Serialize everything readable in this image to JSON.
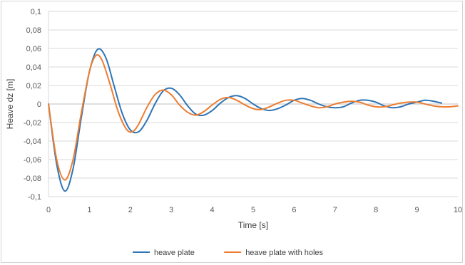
{
  "chart_data": {
    "type": "line",
    "title": "",
    "xlabel": "Time [s]",
    "ylabel": "Heave dz [m]",
    "xlim": [
      0,
      10
    ],
    "ylim": [
      -0.1,
      0.1
    ],
    "x_ticks": [
      "0",
      "1",
      "2",
      "3",
      "4",
      "5",
      "6",
      "7",
      "8",
      "9",
      "10"
    ],
    "y_ticks": [
      "0,1",
      "0,08",
      "0,06",
      "0,04",
      "0,02",
      "0",
      "-0,02",
      "-0,04",
      "-0,06",
      "-0,08",
      "-0,1"
    ],
    "grid": true,
    "legend_position": "bottom",
    "series": [
      {
        "name": "heave plate",
        "color": "#2e75b6",
        "points": [
          [
            0,
            0
          ],
          [
            0.2,
            -0.065
          ],
          [
            0.4,
            -0.094
          ],
          [
            0.6,
            -0.07
          ],
          [
            0.8,
            -0.015
          ],
          [
            1.0,
            0.035
          ],
          [
            1.2,
            0.059
          ],
          [
            1.4,
            0.05
          ],
          [
            1.6,
            0.02
          ],
          [
            1.8,
            -0.01
          ],
          [
            2.0,
            -0.028
          ],
          [
            2.2,
            -0.03
          ],
          [
            2.4,
            -0.018
          ],
          [
            2.6,
            0.0
          ],
          [
            2.8,
            0.014
          ],
          [
            3.0,
            0.017
          ],
          [
            3.2,
            0.01
          ],
          [
            3.4,
            -0.002
          ],
          [
            3.6,
            -0.011
          ],
          [
            3.8,
            -0.012
          ],
          [
            4.0,
            -0.007
          ],
          [
            4.2,
            0.001
          ],
          [
            4.4,
            0.007
          ],
          [
            4.6,
            0.009
          ],
          [
            4.8,
            0.006
          ],
          [
            5.0,
            0.0
          ],
          [
            5.2,
            -0.005
          ],
          [
            5.4,
            -0.007
          ],
          [
            5.6,
            -0.005
          ],
          [
            5.8,
            -0.001
          ],
          [
            6.0,
            0.004
          ],
          [
            6.2,
            0.006
          ],
          [
            6.4,
            0.004
          ],
          [
            6.6,
            0.0
          ],
          [
            6.8,
            -0.003
          ],
          [
            7.0,
            -0.004
          ],
          [
            7.2,
            -0.003
          ],
          [
            7.4,
            0.001
          ],
          [
            7.6,
            0.004
          ],
          [
            7.8,
            0.004
          ],
          [
            8.0,
            0.002
          ],
          [
            8.2,
            -0.002
          ],
          [
            8.4,
            -0.004
          ],
          [
            8.6,
            -0.003
          ],
          [
            8.8,
            0.0
          ],
          [
            9.0,
            0.002
          ],
          [
            9.2,
            0.004
          ],
          [
            9.4,
            0.003
          ],
          [
            9.6,
            0.001
          ]
        ]
      },
      {
        "name": "heave plate with holes",
        "color": "#ed7d31",
        "points": [
          [
            0,
            0
          ],
          [
            0.2,
            -0.06
          ],
          [
            0.4,
            -0.082
          ],
          [
            0.6,
            -0.06
          ],
          [
            0.8,
            -0.01
          ],
          [
            1.0,
            0.035
          ],
          [
            1.15,
            0.052
          ],
          [
            1.3,
            0.048
          ],
          [
            1.5,
            0.022
          ],
          [
            1.7,
            -0.008
          ],
          [
            1.9,
            -0.027
          ],
          [
            2.05,
            -0.03
          ],
          [
            2.2,
            -0.022
          ],
          [
            2.4,
            -0.004
          ],
          [
            2.6,
            0.01
          ],
          [
            2.8,
            0.015
          ],
          [
            3.0,
            0.01
          ],
          [
            3.2,
            -0.001
          ],
          [
            3.4,
            -0.009
          ],
          [
            3.6,
            -0.012
          ],
          [
            3.8,
            -0.008
          ],
          [
            4.0,
            -0.001
          ],
          [
            4.2,
            0.005
          ],
          [
            4.4,
            0.007
          ],
          [
            4.6,
            0.004
          ],
          [
            4.8,
            -0.001
          ],
          [
            5.0,
            -0.005
          ],
          [
            5.2,
            -0.006
          ],
          [
            5.4,
            -0.003
          ],
          [
            5.6,
            0.001
          ],
          [
            5.8,
            0.004
          ],
          [
            6.0,
            0.004
          ],
          [
            6.2,
            0.001
          ],
          [
            6.4,
            -0.002
          ],
          [
            6.6,
            -0.004
          ],
          [
            6.8,
            -0.003
          ],
          [
            7.0,
            0.0
          ],
          [
            7.2,
            0.002
          ],
          [
            7.4,
            0.003
          ],
          [
            7.6,
            0.002
          ],
          [
            7.8,
            -0.001
          ],
          [
            8.0,
            -0.003
          ],
          [
            8.2,
            -0.003
          ],
          [
            8.4,
            -0.001
          ],
          [
            8.6,
            0.001
          ],
          [
            8.8,
            0.002
          ],
          [
            9.0,
            0.002
          ],
          [
            9.2,
            0.0
          ],
          [
            9.4,
            -0.002
          ],
          [
            9.6,
            -0.003
          ],
          [
            9.8,
            -0.003
          ],
          [
            10.0,
            -0.002
          ]
        ]
      }
    ]
  }
}
